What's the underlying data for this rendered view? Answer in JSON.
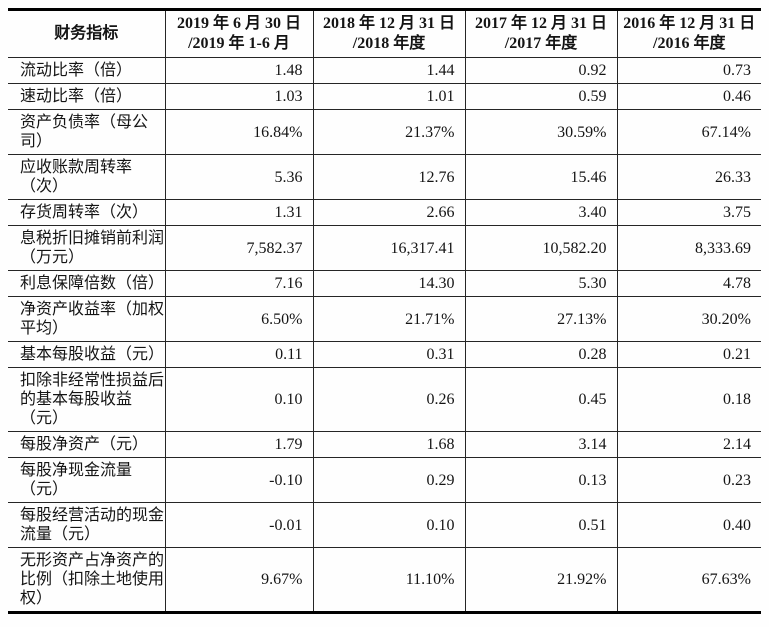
{
  "table": {
    "header": {
      "indicator": "财务指标",
      "periods": [
        {
          "line1": "2019 年 6 月 30 日",
          "line2": "/2019 年 1-6 月"
        },
        {
          "line1": "2018 年 12 月 31 日",
          "line2": "/2018 年度"
        },
        {
          "line1": "2017 年 12 月 31 日",
          "line2": "/2017 年度"
        },
        {
          "line1": "2016 年 12 月 31 日",
          "line2": "/2016 年度"
        }
      ]
    },
    "rows": [
      {
        "label": "流动比率（倍）",
        "values": [
          "1.48",
          "1.44",
          "0.92",
          "0.73"
        ]
      },
      {
        "label": "速动比率（倍）",
        "values": [
          "1.03",
          "1.01",
          "0.59",
          "0.46"
        ]
      },
      {
        "label": "资产负债率（母公司）",
        "values": [
          "16.84%",
          "21.37%",
          "30.59%",
          "67.14%"
        ]
      },
      {
        "label": "应收账款周转率（次）",
        "values": [
          "5.36",
          "12.76",
          "15.46",
          "26.33"
        ]
      },
      {
        "label": "存货周转率（次）",
        "values": [
          "1.31",
          "2.66",
          "3.40",
          "3.75"
        ]
      },
      {
        "label": "息税折旧摊销前利润（万元）",
        "values": [
          "7,582.37",
          "16,317.41",
          "10,582.20",
          "8,333.69"
        ]
      },
      {
        "label": "利息保障倍数（倍）",
        "values": [
          "7.16",
          "14.30",
          "5.30",
          "4.78"
        ]
      },
      {
        "label": "净资产收益率（加权平均）",
        "values": [
          "6.50%",
          "21.71%",
          "27.13%",
          "30.20%"
        ]
      },
      {
        "label": "基本每股收益（元）",
        "values": [
          "0.11",
          "0.31",
          "0.28",
          "0.21"
        ]
      },
      {
        "label": "扣除非经常性损益后的基本每股收益（元）",
        "values": [
          "0.10",
          "0.26",
          "0.45",
          "0.18"
        ]
      },
      {
        "label": "每股净资产（元）",
        "values": [
          "1.79",
          "1.68",
          "3.14",
          "2.14"
        ]
      },
      {
        "label": "每股净现金流量（元）",
        "values": [
          "-0.10",
          "0.29",
          "0.13",
          "0.23"
        ]
      },
      {
        "label": "每股经营活动的现金流量（元）",
        "values": [
          "-0.01",
          "0.10",
          "0.51",
          "0.40"
        ]
      },
      {
        "label": "无形资产占净资产的比例（扣除土地使用权）",
        "values": [
          "9.67%",
          "11.10%",
          "21.92%",
          "67.63%"
        ]
      }
    ]
  }
}
